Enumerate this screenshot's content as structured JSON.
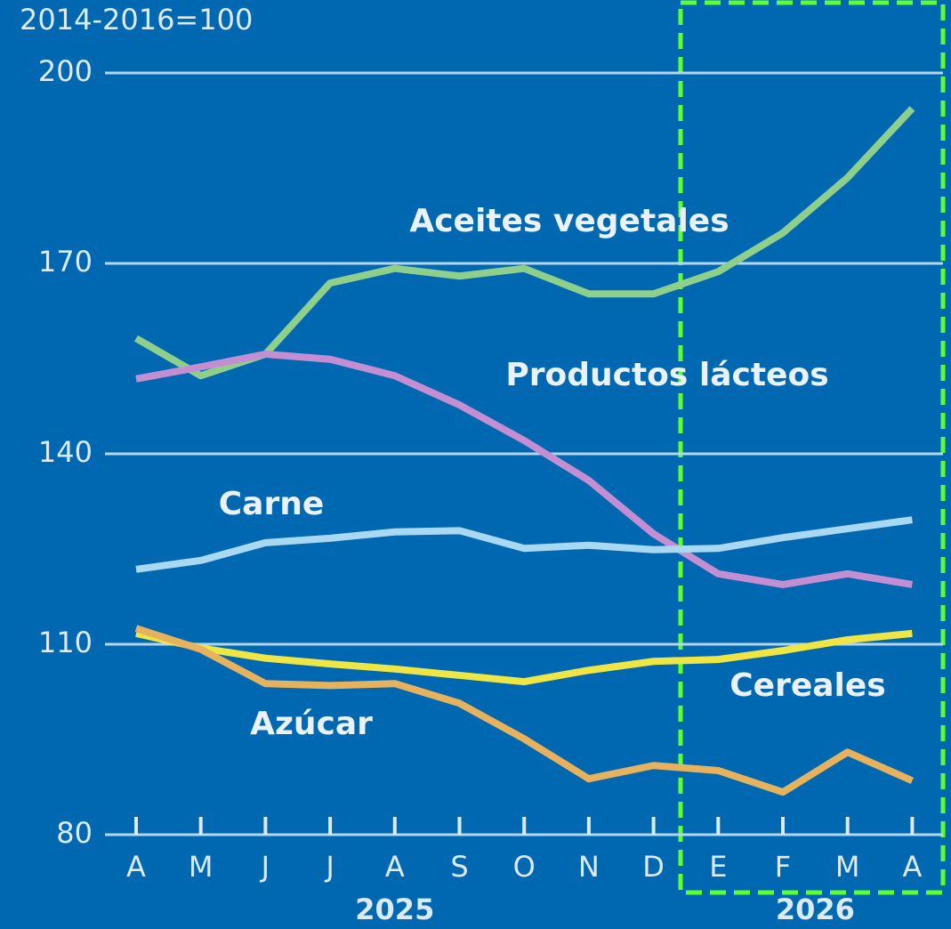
{
  "chart_data": {
    "type": "line",
    "unit_label": "2014-2016=100",
    "categories": [
      "A",
      "M",
      "J",
      "J",
      "A",
      "S",
      "O",
      "N",
      "D",
      "E",
      "F",
      "M",
      "A"
    ],
    "year_labels": [
      "2025",
      "2026"
    ],
    "ylim": [
      80,
      200
    ],
    "yticks": [
      80,
      110,
      140,
      170,
      200
    ],
    "grid": true,
    "series": [
      {
        "name": "Aceites vegetales",
        "color": "#8fcf8c",
        "values": [
          158.2,
          152.3,
          155.7,
          166.9,
          169.2,
          168.0,
          169.2,
          165.2,
          165.2,
          168.7,
          174.8,
          183.5,
          194.4
        ]
      },
      {
        "name": "Productos lácteos",
        "color": "#c48fd2",
        "values": [
          151.8,
          153.7,
          155.7,
          154.9,
          152.3,
          147.7,
          142.1,
          135.8,
          127.4,
          121.1,
          119.4,
          121.1,
          119.4
        ]
      },
      {
        "name": "Carne",
        "color": "#a9d8f2",
        "values": [
          121.8,
          123.2,
          126.0,
          126.7,
          127.7,
          127.9,
          125.1,
          125.6,
          124.9,
          125.1,
          126.8,
          128.2,
          129.6
        ]
      },
      {
        "name": "Cereales",
        "color": "#ede645",
        "values": [
          111.7,
          109.4,
          107.8,
          106.9,
          106.1,
          105.1,
          104.1,
          105.9,
          107.3,
          107.6,
          109.0,
          110.7,
          111.7
        ]
      },
      {
        "name": "Azúcar",
        "color": "#e6b25e",
        "values": [
          112.5,
          109.2,
          103.8,
          103.5,
          103.8,
          100.7,
          95.1,
          88.8,
          90.9,
          90.1,
          86.7,
          93.0,
          88.5
        ]
      }
    ]
  }
}
